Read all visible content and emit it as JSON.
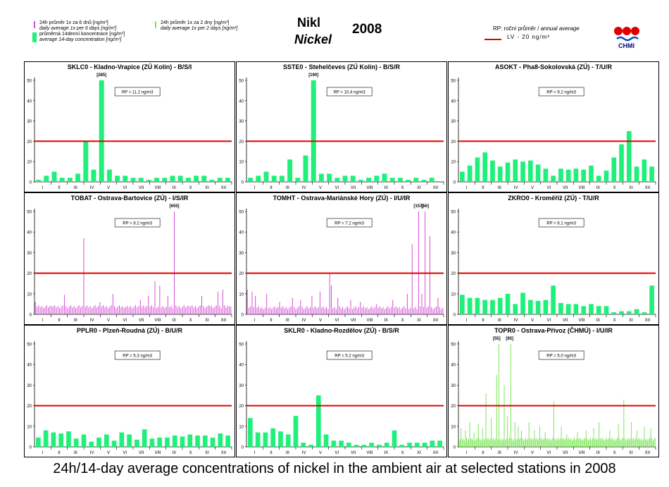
{
  "header": {
    "legend": [
      {
        "cz": "24h průměr 1x za 6 dnů [ng/m³]",
        "en": "daily average 1x per 6 days [ng/m³]",
        "color": "#d64dd6",
        "swatch": "thin"
      },
      {
        "cz": "průměrná 14denní koncentrace [ng/m³]",
        "en": "average 14-day concentration [ng/m³]",
        "color": "#1ff07a",
        "swatch": "block"
      }
    ],
    "legend_mid": {
      "cz": "24h průměr 1x za 2 dny [ng/m³]",
      "en": "daily average 1x per 2 days [ng/m³]",
      "color": "#7fe65a"
    },
    "title_cz": "Nikl",
    "title_en": "Nickel",
    "year": "2008",
    "rp_cz": "RP: roční průměr / ",
    "rp_en": "annual average",
    "lv_label": "LV  - 20 ng/m³",
    "logo_text": "CHMI"
  },
  "colors": {
    "bar": "#1ff07a",
    "daily6": "#d64dd6",
    "daily2": "#7fe65a",
    "limit": "#e00000"
  },
  "months": [
    "I",
    "II",
    "III",
    "IV",
    "V",
    "VI",
    "VII",
    "VIII",
    "IX",
    "X",
    "XI",
    "XII"
  ],
  "yticks": [
    0,
    10,
    20,
    30,
    40,
    50
  ],
  "limit_value": 20,
  "caption": "24h/14-day average concentrations of nickel in the ambient air at selected stations in 2008",
  "chart_data": [
    {
      "type": "bar",
      "title": "SKLC0 - Kladno-Vrapice (ZÚ Kolín) - B/S/I",
      "rp": "RP = 11.2 ng/m3",
      "ylim": [
        0,
        50
      ],
      "values": [
        1,
        3,
        5,
        2,
        2,
        4,
        20,
        6,
        50,
        6,
        3,
        3,
        2,
        2,
        1,
        2,
        2,
        3,
        3,
        2,
        3,
        3,
        1,
        2,
        2
      ],
      "annotations": [
        {
          "text": "[285]",
          "index": 8
        }
      ]
    },
    {
      "type": "bar",
      "title": "SSTE0 - Stehelčeves (ZÚ Kolín) - B/S/R",
      "rp": "RP = 10.4 ng/m3",
      "ylim": [
        0,
        50
      ],
      "values": [
        2,
        3,
        5,
        3,
        3,
        11,
        2,
        13,
        50,
        4,
        4,
        2,
        3,
        3,
        1,
        2,
        3,
        4,
        2,
        2,
        1,
        2,
        1,
        2,
        0
      ],
      "annotations": [
        {
          "text": "[190]",
          "index": 8
        }
      ]
    },
    {
      "type": "bar",
      "title": "ASOKT - Pha8-Sokolovská (ZÚ) - T/U/R",
      "rp": "RP = 9.2 ng/m3",
      "ylim": [
        0,
        50
      ],
      "values": [
        5,
        8,
        12,
        14.5,
        10.5,
        7.5,
        9.5,
        11,
        10,
        10.5,
        8.5,
        6.5,
        3,
        6.5,
        6,
        6.5,
        6,
        8,
        3,
        5.5,
        12,
        18.5,
        25,
        7.5,
        11,
        7.5
      ]
    },
    {
      "type": "daily",
      "series": "daily6",
      "title": "TOBAT - Ostrava-Bartovice (ZÚ) - I/S/IR",
      "rp": "RP = 8.2 ng/m3",
      "ylim": [
        0,
        50
      ],
      "n": 122,
      "base": 3,
      "peaks": [
        [
          0,
          6
        ],
        [
          10,
          4
        ],
        [
          18,
          9.5
        ],
        [
          30,
          37
        ],
        [
          40,
          6
        ],
        [
          48,
          10
        ],
        [
          57,
          4
        ],
        [
          65,
          7
        ],
        [
          70,
          9
        ],
        [
          74,
          16
        ],
        [
          77,
          14
        ],
        [
          82,
          9
        ],
        [
          86,
          50
        ],
        [
          95,
          4
        ],
        [
          103,
          9
        ],
        [
          108,
          4
        ],
        [
          113,
          11
        ],
        [
          116,
          12
        ],
        [
          120,
          4
        ]
      ],
      "annotations": [
        {
          "text": "[655]",
          "index": 86
        }
      ]
    },
    {
      "type": "daily",
      "series": "daily6",
      "title": "TOMHT - Ostrava-Mariánské Hory (ZÚ) - I/U/IR",
      "rp": "RP = 7.2 ng/m3",
      "ylim": [
        0,
        50
      ],
      "n": 122,
      "base": 2.5,
      "peaks": [
        [
          0,
          12
        ],
        [
          3,
          11
        ],
        [
          5,
          9
        ],
        [
          12,
          10
        ],
        [
          20,
          6
        ],
        [
          28,
          8
        ],
        [
          33,
          7
        ],
        [
          40,
          9
        ],
        [
          45,
          11
        ],
        [
          51,
          20
        ],
        [
          52,
          14
        ],
        [
          56,
          8
        ],
        [
          64,
          7
        ],
        [
          70,
          6
        ],
        [
          80,
          5
        ],
        [
          90,
          7
        ],
        [
          99,
          10
        ],
        [
          102,
          34
        ],
        [
          106,
          50
        ],
        [
          108,
          10
        ],
        [
          110,
          50
        ],
        [
          113,
          38
        ],
        [
          118,
          8
        ]
      ],
      "annotations": [
        {
          "text": "[157]",
          "index": 106
        },
        {
          "text": "[56]",
          "index": 110
        }
      ]
    },
    {
      "type": "bar",
      "title": "ZKRO0 - Kroměříž (ZÚ) - T/U/R",
      "rp": "RP = 6.1 ng/m3",
      "ylim": [
        0,
        50
      ],
      "values": [
        9.5,
        8,
        8,
        7,
        7,
        8,
        10,
        5,
        10.5,
        7,
        6.5,
        7,
        14,
        5.5,
        5,
        5,
        4,
        5,
        4,
        4,
        1,
        1.5,
        1.5,
        2.5,
        1,
        14
      ]
    },
    {
      "type": "bar",
      "title": "PPLR0 - Plzeň-Roudná (ZÚ) - B/U/R",
      "rp": "RP = 5.3 ng/m3",
      "ylim": [
        0,
        50
      ],
      "values": [
        4.5,
        8,
        7,
        6.5,
        7.5,
        4,
        6,
        2.5,
        4.5,
        6,
        3,
        7,
        6,
        3.5,
        8.5,
        4,
        4.5,
        4.5,
        5.5,
        5,
        6,
        5.5,
        5.5,
        4.5,
        6.5,
        5.5
      ]
    },
    {
      "type": "bar",
      "title": "SKLR0 - Kladno-Rozdělov (ZÚ) - B/S/R",
      "rp": "RP = 5.2 ng/m3",
      "ylim": [
        0,
        50
      ],
      "values": [
        14,
        7,
        7,
        9,
        7.5,
        6,
        15,
        2,
        1,
        25,
        6,
        3,
        3,
        2,
        1,
        1,
        2,
        1,
        2,
        8,
        1,
        2,
        2,
        2,
        3,
        3
      ]
    },
    {
      "type": "daily",
      "series": "daily2",
      "title": "TOPR0 - Ostrava-Přívoz (ČHMÚ) - I/U/IR",
      "rp": "RP = 5.0 ng/m3",
      "ylim": [
        0,
        50
      ],
      "n": 183,
      "base": 3,
      "peaks": [
        [
          2,
          9
        ],
        [
          6,
          8
        ],
        [
          10,
          12
        ],
        [
          14,
          7
        ],
        [
          18,
          11
        ],
        [
          22,
          9
        ],
        [
          25,
          26
        ],
        [
          30,
          14
        ],
        [
          35,
          35
        ],
        [
          37,
          50
        ],
        [
          42,
          30
        ],
        [
          45,
          15
        ],
        [
          48,
          50
        ],
        [
          52,
          12
        ],
        [
          55,
          10
        ],
        [
          58,
          8
        ],
        [
          65,
          12
        ],
        [
          70,
          8
        ],
        [
          75,
          10
        ],
        [
          80,
          7
        ],
        [
          88,
          22
        ],
        [
          95,
          10
        ],
        [
          100,
          6
        ],
        [
          110,
          7
        ],
        [
          118,
          8
        ],
        [
          125,
          9
        ],
        [
          130,
          12
        ],
        [
          140,
          8
        ],
        [
          148,
          11
        ],
        [
          153,
          23
        ],
        [
          160,
          12
        ],
        [
          165,
          8
        ],
        [
          172,
          10
        ],
        [
          178,
          9
        ]
      ],
      "annotations": [
        {
          "text": "[55]",
          "index": 35
        },
        {
          "text": "[65]",
          "index": 47
        }
      ]
    }
  ]
}
